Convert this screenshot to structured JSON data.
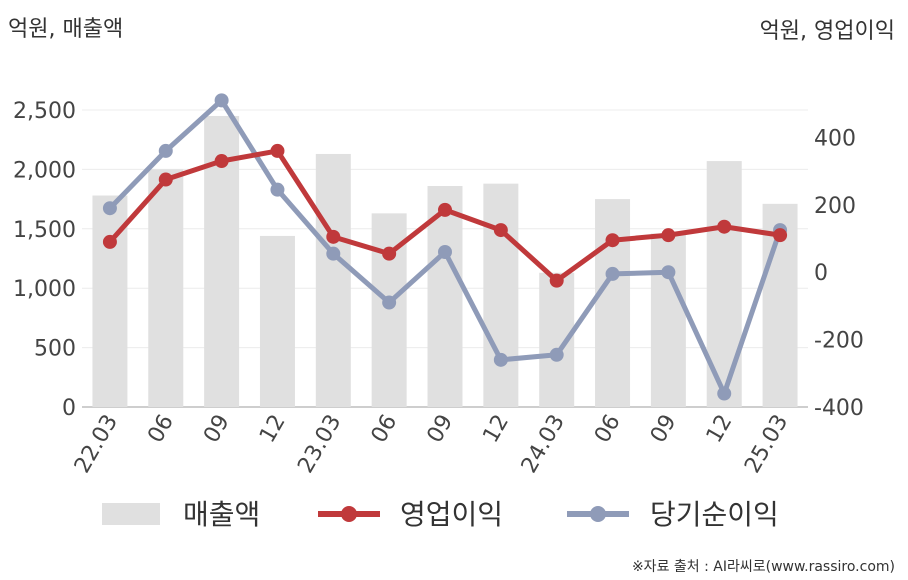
{
  "chart_data": {
    "type": "bar+line",
    "left_unit_label": "억원, 매출액",
    "right_unit_label": "억원, 영업이익",
    "categories": [
      "22.03",
      "06",
      "09",
      "12",
      "23.03",
      "06",
      "09",
      "12",
      "24.03",
      "06",
      "09",
      "12",
      "25.03"
    ],
    "left_axis": {
      "range": [
        0,
        2500
      ],
      "ticks": [
        0,
        500,
        1000,
        1500,
        2000,
        2500
      ],
      "tick_labels": [
        "0",
        "500",
        "1,000",
        "1,500",
        "2,000",
        "2,500"
      ]
    },
    "right_axis": {
      "range": [
        -400,
        520
      ],
      "ticks": [
        -400,
        -200,
        0,
        200,
        400
      ],
      "tick_labels": [
        "-400",
        "-200",
        "0",
        "200",
        "400"
      ]
    },
    "series": [
      {
        "name": "매출액",
        "type": "bar",
        "axis": "left",
        "color": "#e0e0e0",
        "values": [
          1780,
          2000,
          2450,
          1440,
          2130,
          1630,
          1860,
          1880,
          1130,
          1750,
          1460,
          2070,
          1710
        ]
      },
      {
        "name": "영업이익",
        "type": "line",
        "axis": "right",
        "color": "#c0393b",
        "values": [
          90,
          275,
          330,
          360,
          105,
          55,
          185,
          125,
          -25,
          95,
          110,
          135,
          110
        ]
      },
      {
        "name": "당기순이익",
        "type": "line",
        "axis": "right",
        "color": "#8f9bb8",
        "values": [
          190,
          360,
          510,
          245,
          55,
          -90,
          60,
          -260,
          -245,
          -5,
          0,
          -360,
          125
        ]
      }
    ],
    "legend_position": "bottom",
    "grid": true
  },
  "source_note": "※자료 출처 : AI라씨로(www.rassiro.com)"
}
